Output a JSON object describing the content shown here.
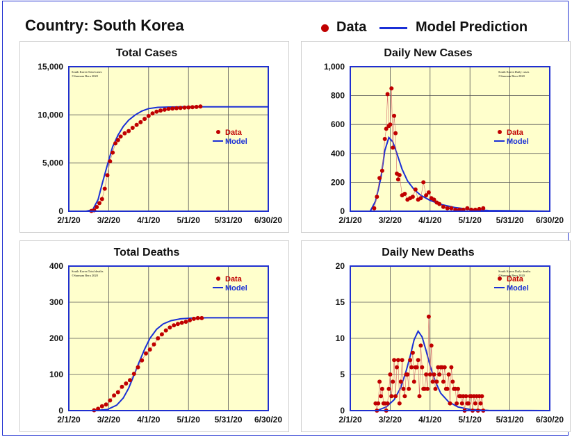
{
  "header": {
    "title": "Country: South Korea",
    "legend_data_label": "Data",
    "legend_model_label": "Model Prediction"
  },
  "colors": {
    "data": "#c00000",
    "model": "#1a2fd6",
    "plot_bg": "#ffffcc",
    "border": "#1f2fd0"
  },
  "chart_data": [
    {
      "type": "scatter",
      "title": "Total Cases",
      "xlabel": "",
      "ylabel": "",
      "x_ticks": [
        "2/1/20",
        "3/2/20",
        "4/1/20",
        "5/1/20",
        "5/31/20",
        "6/30/20"
      ],
      "y_ticks": [
        "0",
        "5,000",
        "10,000",
        "15,000"
      ],
      "ylim": [
        0,
        15000
      ],
      "xlim": [
        "2/1/20",
        "6/30/20"
      ],
      "watermark": [
        "South Korea Total cases",
        "©Sunnam Bera 2020"
      ],
      "legend": [
        "Data",
        "Model"
      ],
      "series": [
        {
          "name": "Data",
          "kind": "points",
          "x": [
            "2/18/20",
            "2/20/20",
            "2/22/20",
            "2/24/20",
            "2/26/20",
            "2/28/20",
            "3/1/20",
            "3/3/20",
            "3/5/20",
            "3/7/20",
            "3/9/20",
            "3/11/20",
            "3/14/20",
            "3/17/20",
            "3/20/20",
            "3/23/20",
            "3/26/20",
            "3/29/20",
            "4/1/20",
            "4/4/20",
            "4/7/20",
            "4/10/20",
            "4/13/20",
            "4/16/20",
            "4/19/20",
            "4/22/20",
            "4/25/20",
            "4/28/20",
            "5/1/20",
            "5/4/20",
            "5/7/20",
            "5/10/20"
          ],
          "y": [
            31,
            104,
            433,
            833,
            1261,
            2337,
            3736,
            5186,
            6088,
            7041,
            7382,
            7755,
            8086,
            8320,
            8652,
            8961,
            9241,
            9583,
            9887,
            10156,
            10331,
            10450,
            10537,
            10613,
            10661,
            10694,
            10718,
            10752,
            10774,
            10801,
            10822,
            10874
          ]
        },
        {
          "name": "Model",
          "kind": "line",
          "x": [
            "2/14/20",
            "2/19/20",
            "2/23/20",
            "2/26/20",
            "3/1/20",
            "3/5/20",
            "3/9/20",
            "3/13/20",
            "3/17/20",
            "3/22/20",
            "3/27/20",
            "4/1/20",
            "4/8/20",
            "4/15/20",
            "4/25/20",
            "5/10/20",
            "6/30/20"
          ],
          "y": [
            0,
            150,
            1200,
            2800,
            4800,
            6700,
            7900,
            8800,
            9450,
            10000,
            10400,
            10650,
            10780,
            10810,
            10830,
            10840,
            10840
          ]
        }
      ]
    },
    {
      "type": "scatter",
      "title": "Daily New Cases",
      "xlabel": "",
      "ylabel": "",
      "x_ticks": [
        "2/1/20",
        "3/2/20",
        "4/1/20",
        "5/1/20",
        "5/31/20",
        "6/30/20"
      ],
      "y_ticks": [
        "0",
        "200",
        "400",
        "600",
        "800",
        "1,000"
      ],
      "ylim": [
        0,
        1000
      ],
      "xlim": [
        "2/1/20",
        "6/30/20"
      ],
      "watermark": [
        "South Korea Daily cases",
        "©Sunnam Bera 2020"
      ],
      "legend": [
        "Data",
        "Model"
      ],
      "series": [
        {
          "name": "Data",
          "kind": "points",
          "x": [
            "2/19/20",
            "2/21/20",
            "2/23/20",
            "2/25/20",
            "2/27/20",
            "2/28/20",
            "2/29/20",
            "3/1/20",
            "3/2/20",
            "3/3/20",
            "3/4/20",
            "3/5/20",
            "3/6/20",
            "3/7/20",
            "3/8/20",
            "3/9/20",
            "3/11/20",
            "3/13/20",
            "3/15/20",
            "3/17/20",
            "3/19/20",
            "3/21/20",
            "3/23/20",
            "3/25/20",
            "3/27/20",
            "3/29/20",
            "3/31/20",
            "4/2/20",
            "4/4/20",
            "4/6/20",
            "4/8/20",
            "4/11/20",
            "4/14/20",
            "4/17/20",
            "4/20/20",
            "4/23/20",
            "4/26/20",
            "4/29/20",
            "5/2/20",
            "5/5/20",
            "5/8/20",
            "5/11/20"
          ],
          "y": [
            20,
            100,
            230,
            280,
            500,
            570,
            810,
            590,
            600,
            850,
            440,
            660,
            540,
            260,
            220,
            250,
            110,
            120,
            80,
            90,
            100,
            150,
            80,
            90,
            200,
            110,
            130,
            90,
            80,
            60,
            50,
            30,
            20,
            20,
            10,
            10,
            10,
            20,
            10,
            10,
            15,
            20
          ]
        },
        {
          "name": "Model",
          "kind": "line",
          "x": [
            "2/16/20",
            "2/20/20",
            "2/24/20",
            "2/27/20",
            "3/1/20",
            "3/4/20",
            "3/7/20",
            "3/11/20",
            "3/15/20",
            "3/20/20",
            "3/25/20",
            "4/1/20",
            "4/10/20",
            "4/20/20",
            "5/1/20",
            "5/15/20",
            "6/30/20"
          ],
          "y": [
            0,
            70,
            230,
            420,
            510,
            480,
            400,
            290,
            210,
            150,
            110,
            75,
            45,
            25,
            12,
            5,
            0
          ]
        }
      ]
    },
    {
      "type": "scatter",
      "title": "Total Deaths",
      "xlabel": "",
      "ylabel": "",
      "x_ticks": [
        "2/1/20",
        "3/2/20",
        "4/1/20",
        "5/1/20",
        "5/31/20",
        "6/30/20"
      ],
      "y_ticks": [
        "0",
        "100",
        "200",
        "300",
        "400"
      ],
      "ylim": [
        0,
        400
      ],
      "xlim": [
        "2/1/20",
        "6/30/20"
      ],
      "watermark": [
        "South Korea Total deaths",
        "©Sunnam Bera 2020"
      ],
      "legend": [
        "Data",
        "Model"
      ],
      "series": [
        {
          "name": "Data",
          "kind": "points",
          "x": [
            "2/20/20",
            "2/23/20",
            "2/26/20",
            "2/29/20",
            "3/3/20",
            "3/6/20",
            "3/9/20",
            "3/12/20",
            "3/15/20",
            "3/18/20",
            "3/21/20",
            "3/24/20",
            "3/27/20",
            "3/30/20",
            "4/2/20",
            "4/5/20",
            "4/8/20",
            "4/11/20",
            "4/14/20",
            "4/17/20",
            "4/20/20",
            "4/23/20",
            "4/26/20",
            "4/29/20",
            "5/2/20",
            "5/5/20",
            "5/8/20",
            "5/11/20"
          ],
          "y": [
            1,
            5,
            12,
            17,
            28,
            42,
            51,
            66,
            75,
            84,
            102,
            120,
            139,
            158,
            169,
            183,
            200,
            211,
            222,
            230,
            236,
            240,
            243,
            246,
            250,
            254,
            256,
            256
          ]
        },
        {
          "name": "Model",
          "kind": "line",
          "x": [
            "2/20/20",
            "3/1/20",
            "3/8/20",
            "3/13/20",
            "3/17/20",
            "3/21/20",
            "3/25/20",
            "3/29/20",
            "4/2/20",
            "4/7/20",
            "4/12/20",
            "4/18/20",
            "4/25/20",
            "5/3/20",
            "5/15/20",
            "6/30/20"
          ],
          "y": [
            0,
            3,
            15,
            35,
            62,
            98,
            135,
            170,
            200,
            225,
            240,
            249,
            254,
            256,
            257,
            257
          ]
        }
      ]
    },
    {
      "type": "scatter",
      "title": "Daily New Deaths",
      "xlabel": "",
      "ylabel": "",
      "x_ticks": [
        "2/1/20",
        "3/2/20",
        "4/1/20",
        "5/1/20",
        "5/31/20",
        "6/30/20"
      ],
      "y_ticks": [
        "0",
        "5",
        "10",
        "15",
        "20"
      ],
      "ylim": [
        0,
        20
      ],
      "xlim": [
        "2/1/20",
        "6/30/20"
      ],
      "watermark": [
        "South Korea Daily deaths",
        "©Sunnam Bera 2020"
      ],
      "legend": [
        "Data",
        "Model"
      ],
      "series": [
        {
          "name": "Data",
          "kind": "points",
          "x": [
            "2/20/20",
            "2/21/20",
            "2/22/20",
            "2/23/20",
            "2/24/20",
            "2/25/20",
            "2/26/20",
            "2/27/20",
            "2/28/20",
            "2/29/20",
            "3/1/20",
            "3/2/20",
            "3/3/20",
            "3/4/20",
            "3/5/20",
            "3/6/20",
            "3/7/20",
            "3/8/20",
            "3/9/20",
            "3/10/20",
            "3/11/20",
            "3/12/20",
            "3/13/20",
            "3/14/20",
            "3/15/20",
            "3/16/20",
            "3/17/20",
            "3/18/20",
            "3/19/20",
            "3/20/20",
            "3/21/20",
            "3/22/20",
            "3/23/20",
            "3/24/20",
            "3/25/20",
            "3/26/20",
            "3/27/20",
            "3/28/20",
            "3/29/20",
            "3/30/20",
            "3/31/20",
            "4/1/20",
            "4/2/20",
            "4/3/20",
            "4/4/20",
            "4/5/20",
            "4/6/20",
            "4/7/20",
            "4/8/20",
            "4/9/20",
            "4/10/20",
            "4/11/20",
            "4/12/20",
            "4/13/20",
            "4/14/20",
            "4/15/20",
            "4/16/20",
            "4/17/20",
            "4/18/20",
            "4/19/20",
            "4/20/20",
            "4/21/20",
            "4/22/20",
            "4/23/20",
            "4/24/20",
            "4/25/20",
            "4/26/20",
            "4/27/20",
            "4/28/20",
            "4/29/20",
            "4/30/20",
            "5/1/20",
            "5/2/20",
            "5/3/20",
            "5/4/20",
            "5/5/20",
            "5/6/20",
            "5/7/20",
            "5/8/20",
            "5/9/20",
            "5/10/20",
            "5/11/20"
          ],
          "y": [
            1,
            0,
            1,
            4,
            2,
            3,
            1,
            1,
            0,
            1,
            3,
            5,
            2,
            4,
            7,
            2,
            6,
            7,
            1,
            4,
            7,
            3,
            2,
            5,
            5,
            3,
            7,
            6,
            8,
            4,
            6,
            6,
            7,
            2,
            9,
            6,
            3,
            3,
            5,
            3,
            13,
            5,
            9,
            4,
            5,
            3,
            4,
            6,
            5,
            6,
            6,
            4,
            6,
            3,
            3,
            5,
            1,
            6,
            4,
            3,
            3,
            1,
            3,
            2,
            2,
            1,
            2,
            0,
            2,
            1,
            1,
            2,
            2,
            0,
            2,
            1,
            2,
            0,
            2,
            1,
            2,
            0
          ]
        },
        {
          "name": "Model",
          "kind": "line",
          "x": [
            "2/21/20",
            "2/28/20",
            "3/5/20",
            "3/10/20",
            "3/14/20",
            "3/17/20",
            "3/20/20",
            "3/23/20",
            "3/26/20",
            "3/29/20",
            "4/1/20",
            "4/5/20",
            "4/9/20",
            "4/15/20",
            "4/22/20",
            "5/1/20",
            "5/15/20",
            "6/30/20"
          ],
          "y": [
            0,
            0.5,
            1.5,
            3.2,
            5.5,
            7.5,
            9.8,
            11.0,
            10.2,
            8.3,
            6.2,
            4.0,
            2.4,
            1.2,
            0.5,
            0.15,
            0.02,
            0
          ]
        }
      ]
    }
  ]
}
